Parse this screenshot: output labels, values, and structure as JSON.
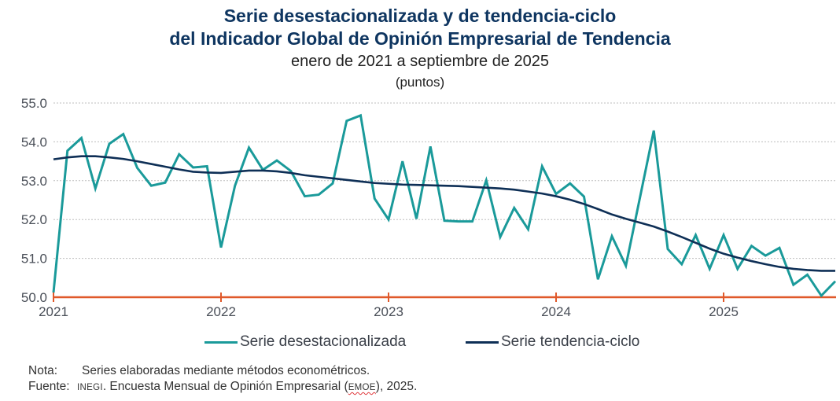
{
  "colors": {
    "title": "#0E3560",
    "desestacionalizada": "#1A9A9A",
    "tendencia": "#0E2F56",
    "axis": "#E0592A",
    "grid": "#BDBDBD",
    "ticklabel": "#4A4F58"
  },
  "chart_data": {
    "type": "line",
    "title": "Serie desestacionalizada y de tendencia-ciclo",
    "title_line2": "del Indicador Global de Opinión Empresarial de Tendencia",
    "subtitle": "enero de 2021 a septiembre de 2025",
    "units": "(puntos)",
    "xlabel": "",
    "ylabel": "",
    "ylim": [
      50.0,
      55.0
    ],
    "yticks": [
      "50.0",
      "51.0",
      "52.0",
      "53.0",
      "54.0",
      "55.0"
    ],
    "xticks": [
      "2021",
      "2022",
      "2023",
      "2024",
      "2025"
    ],
    "grid": "horizontal-dotted",
    "legend_position": "bottom",
    "x_start": "2021-01",
    "x_end": "2025-09",
    "series": [
      {
        "name": "Serie desestacionalizada",
        "values": [
          50.12,
          53.77,
          54.1,
          52.8,
          53.95,
          54.2,
          53.33,
          52.87,
          52.95,
          53.68,
          53.34,
          53.37,
          51.28,
          52.87,
          53.85,
          53.28,
          53.52,
          53.25,
          52.6,
          52.64,
          52.93,
          54.54,
          54.68,
          52.54,
          52.0,
          53.5,
          52.02,
          53.88,
          51.97,
          51.95,
          51.95,
          53.01,
          51.55,
          52.3,
          51.75,
          53.37,
          52.66,
          52.93,
          52.59,
          50.46,
          51.57,
          50.81,
          52.55,
          54.29,
          51.24,
          50.85,
          51.6,
          50.73,
          51.6,
          50.73,
          51.32,
          51.07,
          51.27,
          50.32,
          50.58,
          50.04,
          50.41
        ]
      },
      {
        "name": "Serie tendencia-ciclo",
        "values": [
          53.55,
          53.6,
          53.63,
          53.63,
          53.6,
          53.56,
          53.5,
          53.43,
          53.36,
          53.29,
          53.23,
          53.21,
          53.2,
          53.23,
          53.26,
          53.26,
          53.24,
          53.2,
          53.14,
          53.1,
          53.06,
          53.02,
          52.98,
          52.94,
          52.92,
          52.9,
          52.89,
          52.88,
          52.87,
          52.86,
          52.84,
          52.82,
          52.8,
          52.77,
          52.72,
          52.67,
          52.6,
          52.51,
          52.4,
          52.27,
          52.13,
          52.02,
          51.92,
          51.82,
          51.69,
          51.55,
          51.4,
          51.25,
          51.12,
          51.02,
          50.93,
          50.85,
          50.78,
          50.73,
          50.7,
          50.68,
          50.68
        ]
      }
    ]
  },
  "legend": {
    "items": [
      {
        "label": "Serie desestacionalizada"
      },
      {
        "label": "Serie tendencia-ciclo"
      }
    ]
  },
  "notes": {
    "nota_label": "Nota:",
    "nota_text": "Series elaboradas mediante métodos econométricos.",
    "fuente_label": "Fuente:",
    "fuente_org": "INEGI",
    "fuente_text_1": ". Encuesta Mensual de Opinión Empresarial (",
    "fuente_abbr": "EMOE",
    "fuente_text_2": "), 2025."
  }
}
